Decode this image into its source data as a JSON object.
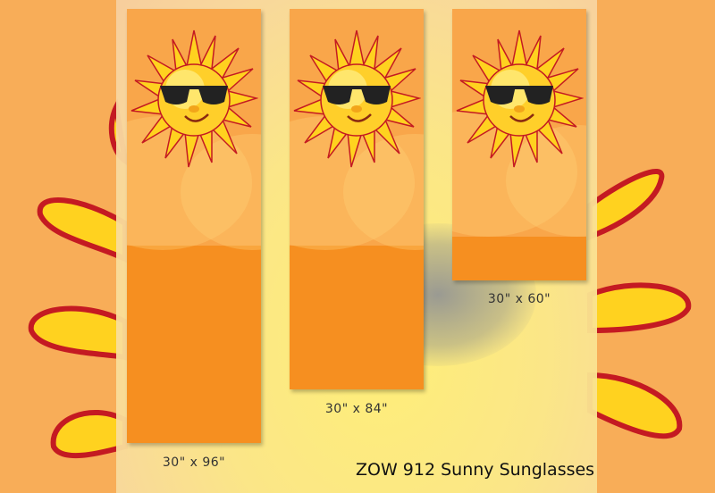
{
  "banners": [
    {
      "size": "30\" x 96\""
    },
    {
      "size": "30\" x 84\""
    },
    {
      "size": "30\" x 60\""
    }
  ],
  "product_title": "ZOW 912 Sunny Sunglasses",
  "colors": {
    "background": "#f8ad58",
    "banner": "#f68f20",
    "banner_top": "#f9a64a",
    "sun": "#ffd21f",
    "outline": "#c0202a"
  }
}
